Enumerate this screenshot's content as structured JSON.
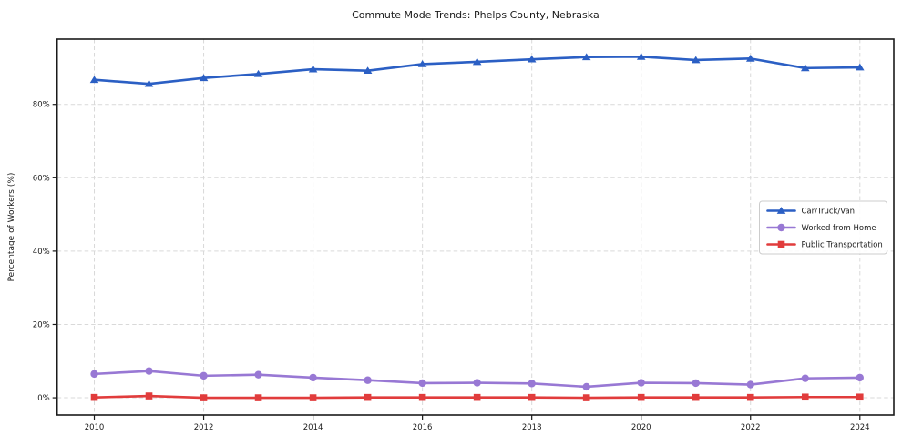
{
  "figure": {
    "title": "Commute Mode Trends: Phelps County, Nebraska",
    "ylabel": "Percentage of Workers (%)"
  },
  "chart_data": {
    "type": "line",
    "title": "Commute Mode Trends: Phelps County, Nebraska",
    "xlabel": "",
    "ylabel": "Percentage of Workers (%)",
    "x": [
      2010,
      2011,
      2012,
      2013,
      2014,
      2015,
      2016,
      2017,
      2018,
      2019,
      2020,
      2021,
      2022,
      2023,
      2024
    ],
    "series": [
      {
        "name": "Car/Truck/Van",
        "color": "#2b5fc4",
        "marker": "triangle",
        "values": [
          86.7,
          85.6,
          87.2,
          88.3,
          89.6,
          89.2,
          91.0,
          91.6,
          92.3,
          92.9,
          93.0,
          92.1,
          92.5,
          89.9,
          90.1
        ]
      },
      {
        "name": "Worked from Home",
        "color": "#9878d4",
        "marker": "circle",
        "values": [
          6.5,
          7.3,
          6.0,
          6.3,
          5.5,
          4.8,
          4.0,
          4.1,
          3.9,
          3.0,
          4.1,
          4.0,
          3.6,
          5.3,
          5.5
        ]
      },
      {
        "name": "Public Transportation",
        "color": "#e13c3c",
        "marker": "square",
        "values": [
          0.1,
          0.5,
          0.0,
          0.0,
          0.0,
          0.1,
          0.1,
          0.1,
          0.1,
          0.0,
          0.1,
          0.1,
          0.1,
          0.2,
          0.2
        ]
      }
    ],
    "x_ticks": [
      2010,
      2012,
      2014,
      2016,
      2018,
      2020,
      2022,
      2024
    ],
    "y_ticks": [
      0,
      20,
      40,
      60,
      80
    ],
    "y_tick_suffix": "%",
    "xlim": [
      2009.32,
      2024.62
    ],
    "ylim": [
      -4.7,
      97.8
    ],
    "grid": true,
    "legend_position": "center right",
    "colors": {
      "grid": "#d9d9d9",
      "spine": "#1a1a1a",
      "legend_border": "#cccccc",
      "legend_bg": "#ffffff"
    }
  }
}
